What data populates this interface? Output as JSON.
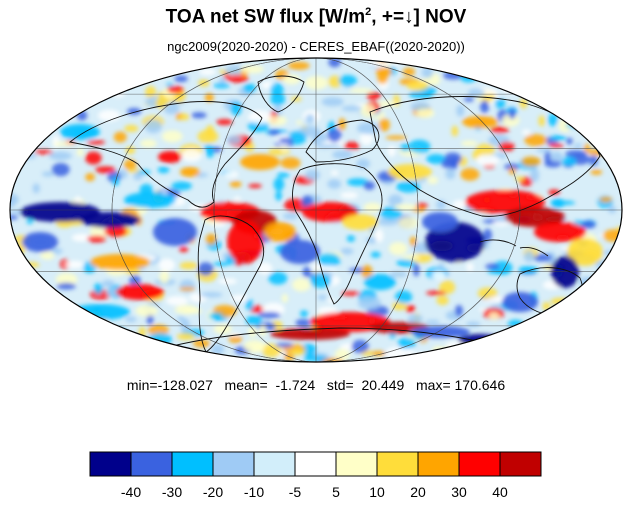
{
  "header": {
    "title_main": "TOA net SW flux [W/m",
    "title_sup": "2",
    "title_tail": ", +=↓]  NOV",
    "subtitle": "ngc2009(2020-2020) - CERES_EBAF((2020-2020))"
  },
  "stats": {
    "text": "min=-128.027   mean=  -1.724   std=  20.449   max= 170.646"
  },
  "colorbar": {
    "colors": [
      "#00008b",
      "#3a62e0",
      "#00bfff",
      "#9fcbf5",
      "#d2eefa",
      "#ffffff",
      "#ffffc8",
      "#ffdd3a",
      "#ffa500",
      "#ff0000",
      "#c00000"
    ],
    "tick_labels": [
      "-40",
      "-30",
      "-20",
      "-10",
      "-5",
      "5",
      "10",
      "20",
      "30",
      "40"
    ]
  },
  "map": {
    "projection": "Mollweide",
    "region": "global",
    "grid": true
  }
}
